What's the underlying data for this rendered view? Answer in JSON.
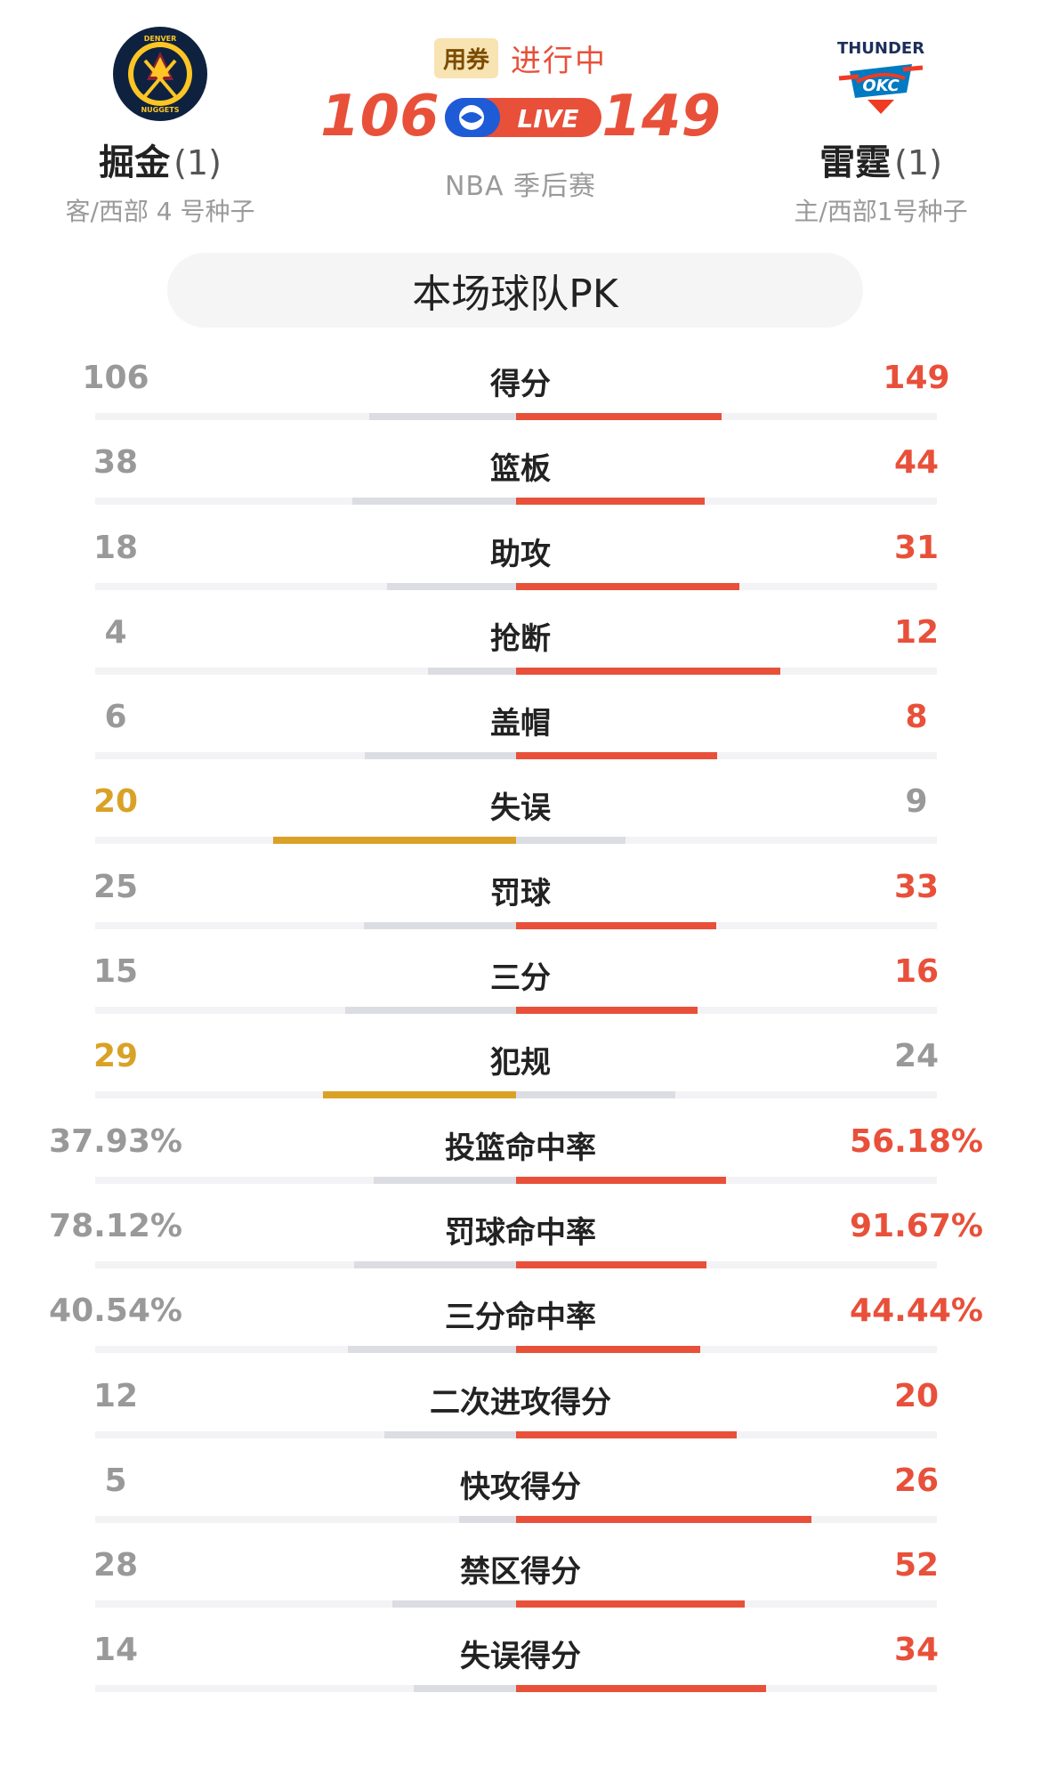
{
  "away_team": {
    "name": "掘金",
    "series_wins": "(1)",
    "subtitle": "客/西部 4 号种子",
    "score": "106",
    "logo_icon": "nuggets-logo-icon",
    "logo_text_top": "DENVER",
    "logo_text_bottom": "NUGGETS",
    "colors": {
      "navy": "#0e2240",
      "gold": "#fec524"
    }
  },
  "home_team": {
    "name": "雷霆",
    "series_wins": "(1)",
    "subtitle": "主/西部1号种子",
    "score": "149",
    "logo_icon": "thunder-logo-icon",
    "logo_text_top": "THUNDER",
    "logo_text_bottom": "OKC",
    "colors": {
      "blue": "#007ac1",
      "orange": "#ef3b24"
    }
  },
  "game": {
    "coupon_label": "用券",
    "status": "进行中",
    "live_label": "LIVE",
    "league": "NBA 季后赛"
  },
  "pk": {
    "title": "本场球队PK"
  },
  "colors": {
    "accent": "#e8503a",
    "gold": "#d9a227",
    "muted_bar": "#dcdde3",
    "track": "#f3f3f5"
  },
  "stats": [
    {
      "label": "得分",
      "away": "106",
      "home": "149",
      "away_val": 106,
      "home_val": 149,
      "leader": "home"
    },
    {
      "label": "篮板",
      "away": "38",
      "home": "44",
      "away_val": 38,
      "home_val": 44,
      "leader": "home"
    },
    {
      "label": "助攻",
      "away": "18",
      "home": "31",
      "away_val": 18,
      "home_val": 31,
      "leader": "home"
    },
    {
      "label": "抢断",
      "away": "4",
      "home": "12",
      "away_val": 4,
      "home_val": 12,
      "leader": "home"
    },
    {
      "label": "盖帽",
      "away": "6",
      "home": "8",
      "away_val": 6,
      "home_val": 8,
      "leader": "home"
    },
    {
      "label": "失误",
      "away": "20",
      "home": "9",
      "away_val": 20,
      "home_val": 9,
      "leader": "away"
    },
    {
      "label": "罚球",
      "away": "25",
      "home": "33",
      "away_val": 25,
      "home_val": 33,
      "leader": "home"
    },
    {
      "label": "三分",
      "away": "15",
      "home": "16",
      "away_val": 15,
      "home_val": 16,
      "leader": "home"
    },
    {
      "label": "犯规",
      "away": "29",
      "home": "24",
      "away_val": 29,
      "home_val": 24,
      "leader": "away"
    },
    {
      "label": "投篮命中率",
      "away": "37.93%",
      "home": "56.18%",
      "away_val": 37.93,
      "home_val": 56.18,
      "leader": "home"
    },
    {
      "label": "罚球命中率",
      "away": "78.12%",
      "home": "91.67%",
      "away_val": 78.12,
      "home_val": 91.67,
      "leader": "home"
    },
    {
      "label": "三分命中率",
      "away": "40.54%",
      "home": "44.44%",
      "away_val": 40.54,
      "home_val": 44.44,
      "leader": "home"
    },
    {
      "label": "二次进攻得分",
      "away": "12",
      "home": "20",
      "away_val": 12,
      "home_val": 20,
      "leader": "home"
    },
    {
      "label": "快攻得分",
      "away": "5",
      "home": "26",
      "away_val": 5,
      "home_val": 26,
      "leader": "home"
    },
    {
      "label": "禁区得分",
      "away": "28",
      "home": "52",
      "away_val": 28,
      "home_val": 52,
      "leader": "home"
    },
    {
      "label": "失误得分",
      "away": "14",
      "home": "34",
      "away_val": 14,
      "home_val": 34,
      "leader": "home"
    }
  ]
}
